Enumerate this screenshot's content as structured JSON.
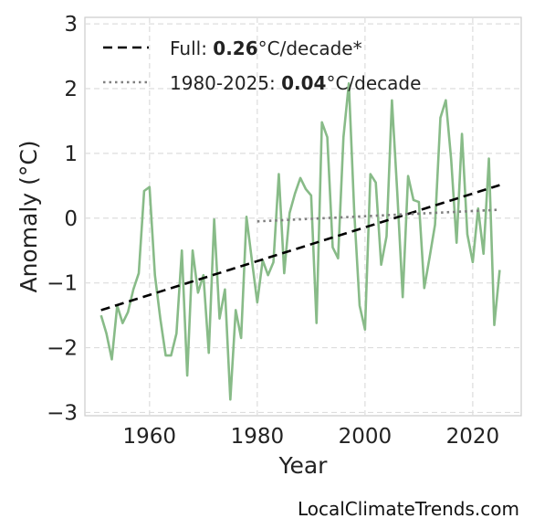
{
  "chart_data": {
    "type": "line",
    "xlabel": "Year",
    "ylabel": "Anomaly (°C)",
    "xlim": [
      1948,
      2029
    ],
    "ylim": [
      -3.05,
      3.1
    ],
    "xticks": [
      1960,
      1980,
      2000,
      2020
    ],
    "yticks": [
      -3,
      -2,
      -1,
      0,
      1,
      2,
      3
    ],
    "ytick_labels": [
      "−3",
      "−2",
      "−1",
      "0",
      "1",
      "2",
      "3"
    ],
    "grid": true,
    "legend_position": "top-left",
    "series": [
      {
        "style": "solid",
        "color": "#88bb88",
        "x": [
          1951,
          1952,
          1953,
          1954,
          1955,
          1956,
          1957,
          1958,
          1959,
          1960,
          1961,
          1962,
          1963,
          1964,
          1965,
          1966,
          1967,
          1968,
          1969,
          1970,
          1971,
          1972,
          1973,
          1974,
          1975,
          1976,
          1977,
          1978,
          1979,
          1980,
          1981,
          1982,
          1983,
          1984,
          1985,
          1986,
          1987,
          1988,
          1989,
          1990,
          1991,
          1992,
          1993,
          1994,
          1995,
          1996,
          1997,
          1998,
          1999,
          2000,
          2001,
          2002,
          2003,
          2004,
          2005,
          2006,
          2007,
          2008,
          2009,
          2010,
          2011,
          2012,
          2013,
          2014,
          2015,
          2016,
          2017,
          2018,
          2019,
          2020,
          2021,
          2022,
          2023,
          2024,
          2025
        ],
        "y": [
          -1.5,
          -1.78,
          -2.18,
          -1.35,
          -1.62,
          -1.45,
          -1.1,
          -0.85,
          0.42,
          0.48,
          -0.88,
          -1.55,
          -2.12,
          -2.12,
          -1.78,
          -0.5,
          -2.43,
          -0.5,
          -1.15,
          -0.88,
          -2.08,
          -0.02,
          -1.55,
          -1.1,
          -2.8,
          -1.42,
          -1.85,
          0.02,
          -0.65,
          -1.3,
          -0.65,
          -0.88,
          -0.68,
          0.68,
          -0.85,
          0.08,
          0.38,
          0.62,
          0.45,
          0.35,
          -1.62,
          1.48,
          1.25,
          -0.45,
          -0.62,
          1.25,
          2.08,
          0.1,
          -1.35,
          -1.72,
          0.68,
          0.55,
          -0.72,
          -0.28,
          1.82,
          0.38,
          -1.22,
          0.65,
          0.28,
          0.25,
          -1.08,
          -0.6,
          -0.1,
          1.55,
          1.82,
          0.9,
          -0.38,
          1.3,
          -0.25,
          -0.68,
          0.15,
          -0.55,
          0.92,
          -1.65,
          -0.8
        ]
      },
      {
        "style": "dashed",
        "color": "#000000",
        "x": [
          1951,
          2025
        ],
        "y": [
          -1.42,
          0.51
        ]
      },
      {
        "style": "dotted",
        "color": "#808080",
        "x": [
          1980,
          2025
        ],
        "y": [
          -0.05,
          0.13
        ]
      }
    ],
    "legend": [
      {
        "prefix": "Full: ",
        "bold": "0.26",
        "suffix": "°C/decade*"
      },
      {
        "prefix": "1980-2025: ",
        "bold": "0.04",
        "suffix": "°C/decade"
      }
    ]
  },
  "credit": "LocalClimateTrends.com"
}
